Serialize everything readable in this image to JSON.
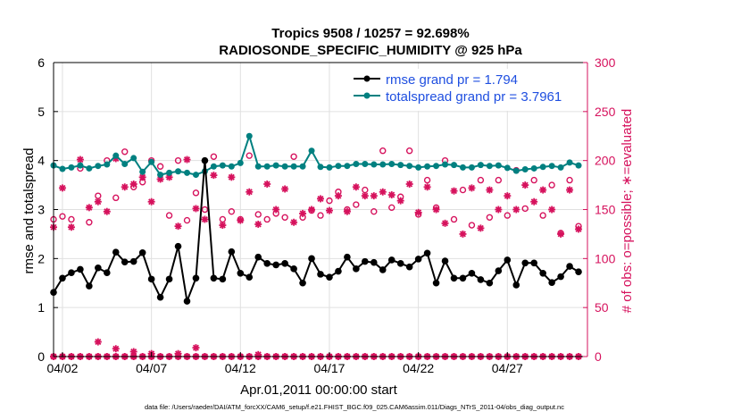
{
  "chart_data": {
    "type": "line",
    "title": "Tropics 9508 / 10257 = 92.698%",
    "subtitle": "RADIOSONDE_SPECIFIC_HUMIDITY @ 925 hPa",
    "xlabel": "Apr.01,2011 00:00:00 start",
    "ylabel_left": "rmse and totalspread",
    "ylabel_right": "# of obs: o=possible; ∗=evaluated",
    "footnote": "data file: /Users/raeder/DAI/ATM_forcXX/CAM6_setup/f.e21.FHIST_BGC.f09_025.CAM6assim.011/Diags_NTrS_2011-04/obs_diag_output.nc",
    "xlim": [
      1.5,
      31.5
    ],
    "ylim_left": [
      0,
      6
    ],
    "ylim_right": [
      0,
      300
    ],
    "x_ticks": [
      2,
      7,
      12,
      17,
      22,
      27
    ],
    "x_tick_labels": [
      "04/02",
      "04/07",
      "04/12",
      "04/17",
      "04/22",
      "04/27"
    ],
    "y_ticks_left": [
      0,
      1,
      2,
      3,
      4,
      5,
      6
    ],
    "y_ticks_right": [
      0,
      50,
      100,
      150,
      200,
      250,
      300
    ],
    "colors": {
      "rmse": "#000000",
      "spread": "#008080",
      "obs": "#d6125d"
    },
    "x": [
      1.5,
      2,
      2.5,
      3,
      3.5,
      4,
      4.5,
      5,
      5.5,
      6,
      6.5,
      7,
      7.5,
      8,
      8.5,
      9,
      9.5,
      10,
      10.5,
      11,
      11.5,
      12,
      12.5,
      13,
      13.5,
      14,
      14.5,
      15,
      15.5,
      16,
      16.5,
      17,
      17.5,
      18,
      18.5,
      19,
      19.5,
      20,
      20.5,
      21,
      21.5,
      22,
      22.5,
      23,
      23.5,
      24,
      24.5,
      25,
      25.5,
      26,
      26.5,
      27,
      27.5,
      28,
      28.5,
      29,
      29.5,
      30,
      30.5,
      31
    ],
    "series": [
      {
        "name": "rmse",
        "legend": "rmse grand pr = 1.794",
        "values": [
          1.31,
          1.6,
          1.71,
          1.78,
          1.44,
          1.81,
          1.71,
          2.13,
          1.93,
          1.94,
          2.12,
          1.58,
          1.21,
          1.58,
          2.25,
          1.13,
          1.6,
          4.0,
          1.6,
          1.58,
          2.14,
          1.7,
          1.62,
          2.03,
          1.9,
          1.87,
          1.9,
          1.79,
          1.5,
          2.0,
          1.68,
          1.62,
          1.74,
          2.03,
          1.79,
          1.94,
          1.92,
          1.77,
          1.97,
          1.9,
          1.83,
          1.99,
          2.11,
          1.5,
          1.95,
          1.6,
          1.6,
          1.7,
          1.57,
          1.5,
          1.75,
          1.97,
          1.46,
          1.91,
          1.91,
          1.7,
          1.51,
          1.63,
          1.84,
          1.73
        ]
      },
      {
        "name": "totalspread",
        "legend": "totalspread grand pr = 3.7961",
        "values": [
          3.9,
          3.83,
          3.86,
          3.9,
          3.84,
          3.89,
          3.92,
          4.1,
          3.93,
          4.05,
          3.77,
          3.97,
          3.71,
          3.75,
          3.78,
          3.75,
          3.71,
          3.78,
          3.88,
          3.9,
          3.88,
          3.95,
          4.5,
          3.88,
          3.88,
          3.9,
          3.88,
          3.88,
          3.88,
          4.2,
          3.87,
          3.86,
          3.89,
          3.89,
          3.93,
          3.93,
          3.92,
          3.92,
          3.93,
          3.91,
          3.89,
          3.86,
          3.88,
          3.89,
          3.92,
          3.91,
          3.86,
          3.86,
          3.91,
          3.89,
          3.9,
          3.85,
          3.79,
          3.82,
          3.84,
          3.87,
          3.89,
          3.86,
          3.96,
          3.9
        ]
      },
      {
        "name": "obs_possible",
        "marker": "circle",
        "values": [
          140,
          143,
          140,
          192,
          137,
          164,
          200,
          162,
          209,
          173,
          178,
          200,
          194,
          144,
          200,
          139,
          167,
          150,
          204,
          140,
          148,
          140,
          205,
          145,
          140,
          146,
          142,
          204,
          142,
          149,
          144,
          159,
          168,
          150,
          155,
          170,
          148,
          210,
          152,
          163,
          210,
          145,
          180,
          152,
          200,
          140,
          170,
          134,
          180,
          142,
          180,
          144,
          190,
          151,
          180,
          144,
          175,
          126,
          180,
          133
        ],
        "zero_markers": true
      },
      {
        "name": "obs_evaluated",
        "marker": "star",
        "values": [
          132,
          172,
          132,
          201,
          152,
          158,
          148,
          202,
          173,
          176,
          183,
          158,
          181,
          183,
          133,
          201,
          151,
          140,
          185,
          134,
          183,
          139,
          168,
          135,
          176,
          150,
          171,
          137,
          146,
          150,
          161,
          149,
          164,
          148,
          173,
          164,
          164,
          168,
          165,
          159,
          176,
          147,
          173,
          150,
          136,
          169,
          125,
          172,
          131,
          170,
          150,
          164,
          150,
          175,
          158,
          170,
          150,
          125,
          170,
          130
        ],
        "zero_markers": true
      }
    ],
    "obs_zero_bumps": {
      "x": [
        4,
        5,
        6,
        7,
        8.5,
        9.5,
        13
      ],
      "values": [
        15,
        8,
        5,
        3,
        3,
        9,
        2
      ]
    }
  }
}
